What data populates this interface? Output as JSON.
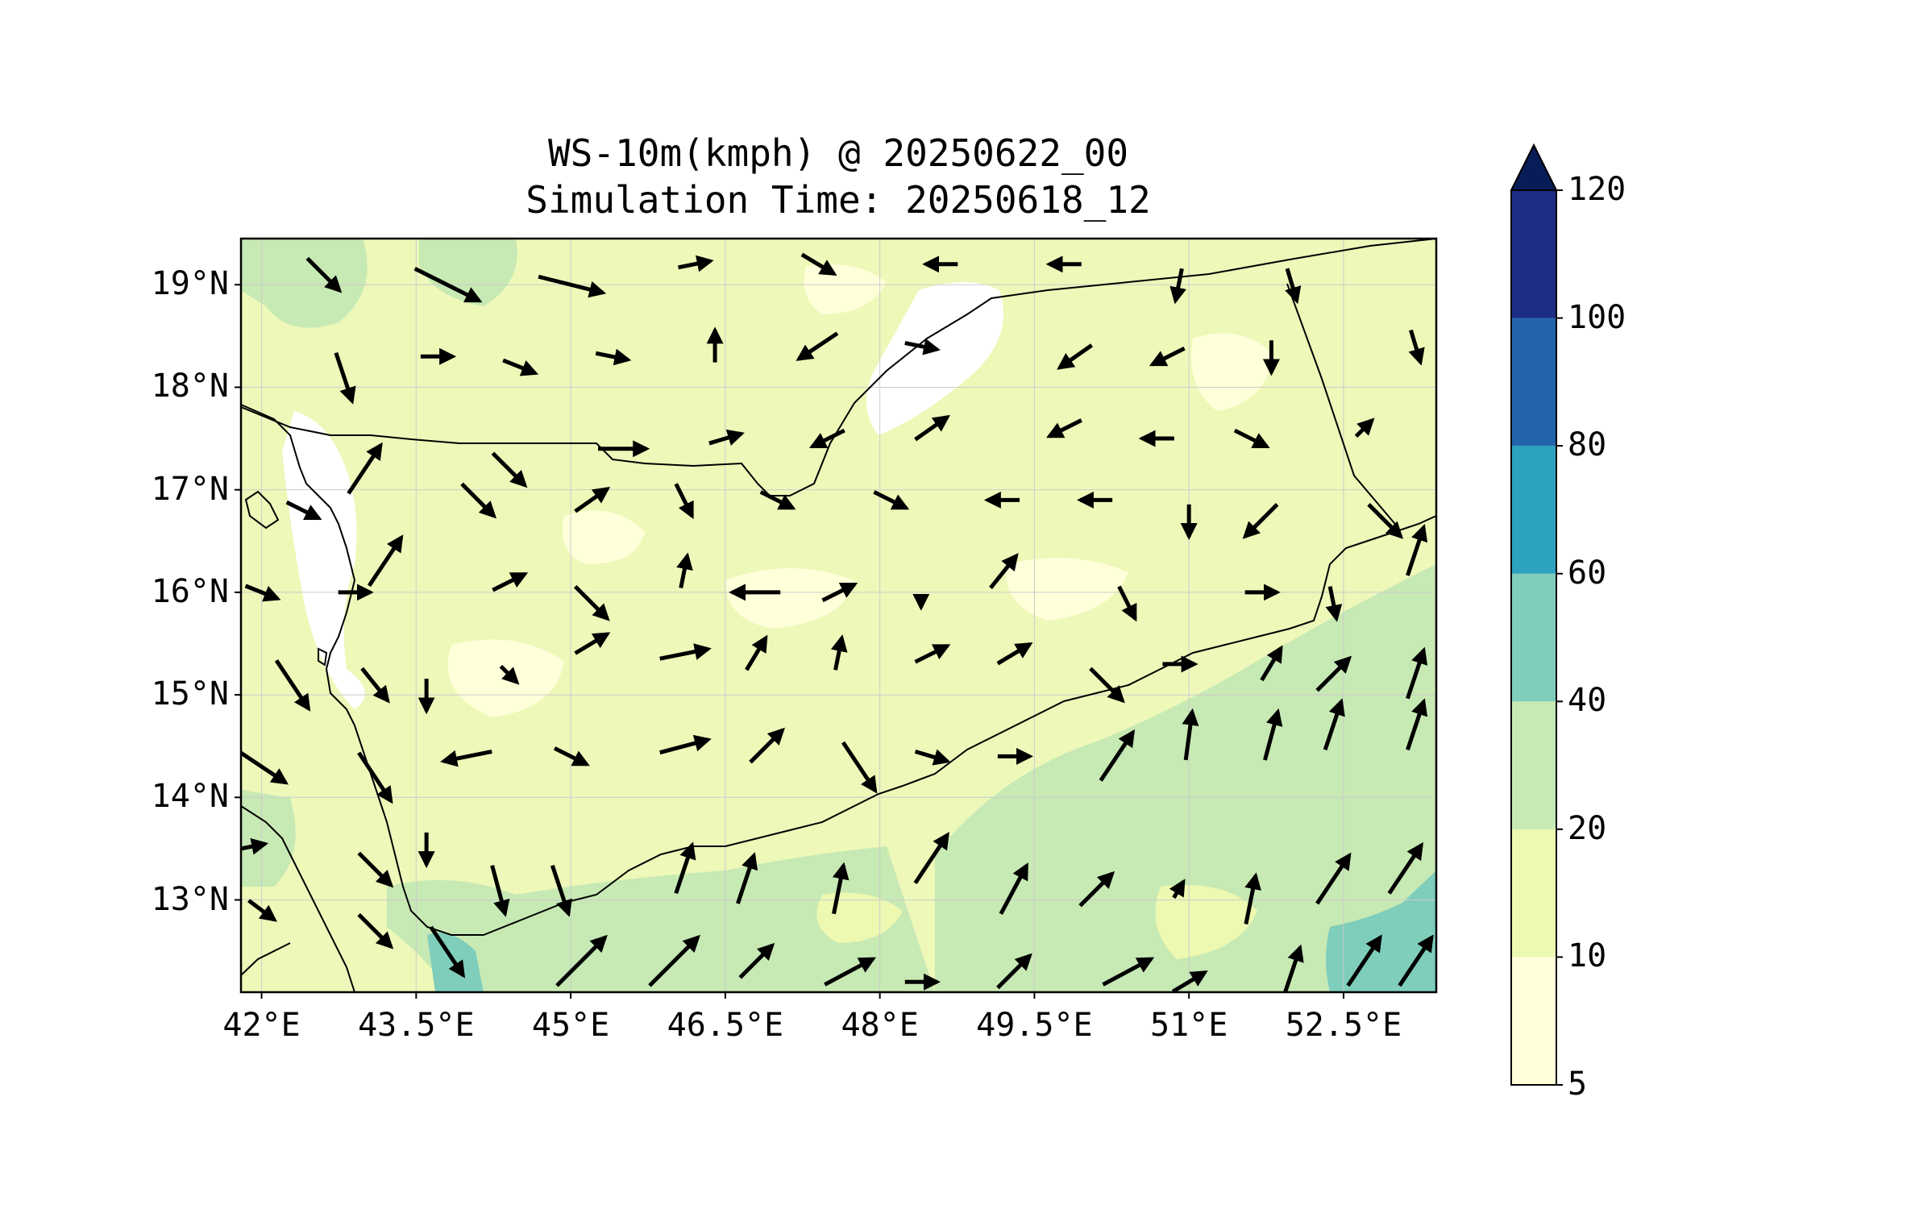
{
  "title": {
    "line1": "WS-10m(kmph) @ 20250622_00",
    "line2": "Simulation Time: 20250618_12"
  },
  "map": {
    "lon_range": [
      41.8,
      53.4
    ],
    "lat_range": [
      12.1,
      19.45
    ],
    "lon_ticks": [
      {
        "value": 42.0,
        "label": "42°E"
      },
      {
        "value": 43.5,
        "label": "43.5°E"
      },
      {
        "value": 45.0,
        "label": "45°E"
      },
      {
        "value": 46.5,
        "label": "46.5°E"
      },
      {
        "value": 48.0,
        "label": "48°E"
      },
      {
        "value": 49.5,
        "label": "49.5°E"
      },
      {
        "value": 51.0,
        "label": "51°E"
      },
      {
        "value": 52.5,
        "label": "52.5°E"
      }
    ],
    "lat_ticks": [
      {
        "value": 19,
        "label": "19°N"
      },
      {
        "value": 18,
        "label": "18°N"
      },
      {
        "value": 17,
        "label": "17°N"
      },
      {
        "value": 16,
        "label": "16°N"
      },
      {
        "value": 15,
        "label": "15°N"
      },
      {
        "value": 14,
        "label": "14°N"
      },
      {
        "value": 13,
        "label": "13°N"
      }
    ],
    "gridlines": true,
    "colors": {
      "land_background": "#edf8b9",
      "coastline": "#000000",
      "borders": "#000000"
    }
  },
  "colorbar": {
    "levels": [
      5,
      10,
      20,
      40,
      60,
      80,
      100,
      120
    ],
    "labels": [
      "5",
      "10",
      "20",
      "40",
      "60",
      "80",
      "100",
      "120"
    ],
    "colors": [
      "#ffffd9",
      "#edf8b1",
      "#c7e9b4",
      "#7fcdbb",
      "#2ca2c0",
      "#2264ab",
      "#1d2c84"
    ],
    "extend_color": "#081d58",
    "extend": "max"
  },
  "wind_arrows": [
    {
      "lon": 42.6,
      "lat": 19.1,
      "dx": 1,
      "dy": -1
    },
    {
      "lon": 43.8,
      "lat": 19.0,
      "dx": 2,
      "dy": -1
    },
    {
      "lon": 45.0,
      "lat": 19.0,
      "dx": 2,
      "dy": -0.5
    },
    {
      "lon": 46.2,
      "lat": 19.2,
      "dx": 1,
      "dy": 0.2
    },
    {
      "lon": 47.4,
      "lat": 19.2,
      "dx": 1,
      "dy": -0.6
    },
    {
      "lon": 48.6,
      "lat": 19.2,
      "dx": -1,
      "dy": 0
    },
    {
      "lon": 49.8,
      "lat": 19.2,
      "dx": -1,
      "dy": 0
    },
    {
      "lon": 50.9,
      "lat": 19.0,
      "dx": -0.2,
      "dy": -1
    },
    {
      "lon": 52.0,
      "lat": 19.0,
      "dx": 0.3,
      "dy": -1
    },
    {
      "lon": 53.2,
      "lat": 18.4,
      "dx": 0.3,
      "dy": -1
    },
    {
      "lon": 42.8,
      "lat": 18.1,
      "dx": 0.5,
      "dy": -1.5
    },
    {
      "lon": 43.7,
      "lat": 18.3,
      "dx": 1,
      "dy": 0
    },
    {
      "lon": 44.5,
      "lat": 18.2,
      "dx": 1,
      "dy": -0.4
    },
    {
      "lon": 45.4,
      "lat": 18.3,
      "dx": 1,
      "dy": -0.2
    },
    {
      "lon": 46.4,
      "lat": 18.4,
      "dx": 0,
      "dy": 1
    },
    {
      "lon": 47.4,
      "lat": 18.4,
      "dx": -1.2,
      "dy": -0.8
    },
    {
      "lon": 48.4,
      "lat": 18.4,
      "dx": 1,
      "dy": -0.2
    },
    {
      "lon": 49.9,
      "lat": 18.3,
      "dx": -1,
      "dy": -0.7
    },
    {
      "lon": 50.8,
      "lat": 18.3,
      "dx": -1,
      "dy": -0.5
    },
    {
      "lon": 51.8,
      "lat": 18.3,
      "dx": 0,
      "dy": -1
    },
    {
      "lon": 43.0,
      "lat": 17.2,
      "dx": 1,
      "dy": 1.5
    },
    {
      "lon": 44.4,
      "lat": 17.2,
      "dx": 1,
      "dy": -1
    },
    {
      "lon": 45.5,
      "lat": 17.4,
      "dx": 1.5,
      "dy": 0
    },
    {
      "lon": 46.5,
      "lat": 17.5,
      "dx": 1,
      "dy": 0.3
    },
    {
      "lon": 47.5,
      "lat": 17.5,
      "dx": -1,
      "dy": -0.5
    },
    {
      "lon": 48.5,
      "lat": 17.6,
      "dx": 1,
      "dy": 0.7
    },
    {
      "lon": 49.8,
      "lat": 17.6,
      "dx": -1,
      "dy": -0.5
    },
    {
      "lon": 50.7,
      "lat": 17.5,
      "dx": -1,
      "dy": 0
    },
    {
      "lon": 51.6,
      "lat": 17.5,
      "dx": 1,
      "dy": -0.5
    },
    {
      "lon": 52.7,
      "lat": 17.6,
      "dx": 0.5,
      "dy": 0.5
    },
    {
      "lon": 42.4,
      "lat": 16.8,
      "dx": 1,
      "dy": -0.5
    },
    {
      "lon": 43.2,
      "lat": 16.3,
      "dx": 1,
      "dy": 1.5
    },
    {
      "lon": 44.1,
      "lat": 16.9,
      "dx": 1,
      "dy": -1
    },
    {
      "lon": 45.2,
      "lat": 16.9,
      "dx": 1,
      "dy": 0.7
    },
    {
      "lon": 46.1,
      "lat": 16.9,
      "dx": 0.5,
      "dy": -1
    },
    {
      "lon": 47.0,
      "lat": 16.9,
      "dx": 1,
      "dy": -0.5
    },
    {
      "lon": 48.1,
      "lat": 16.9,
      "dx": 1,
      "dy": -0.5
    },
    {
      "lon": 49.2,
      "lat": 16.9,
      "dx": -1,
      "dy": 0
    },
    {
      "lon": 50.1,
      "lat": 16.9,
      "dx": -1,
      "dy": 0
    },
    {
      "lon": 51.0,
      "lat": 16.7,
      "dx": 0,
      "dy": -1
    },
    {
      "lon": 51.7,
      "lat": 16.7,
      "dx": -1,
      "dy": -1
    },
    {
      "lon": 52.9,
      "lat": 16.7,
      "dx": 1,
      "dy": -1
    },
    {
      "lon": 42.0,
      "lat": 16.0,
      "dx": 1,
      "dy": -0.4
    },
    {
      "lon": 42.9,
      "lat": 16.0,
      "dx": 1,
      "dy": 0
    },
    {
      "lon": 44.4,
      "lat": 16.1,
      "dx": 1,
      "dy": 0.5
    },
    {
      "lon": 45.2,
      "lat": 15.9,
      "dx": 1,
      "dy": -1
    },
    {
      "lon": 46.1,
      "lat": 16.2,
      "dx": 0.2,
      "dy": 1
    },
    {
      "lon": 46.8,
      "lat": 16.0,
      "dx": -1.5,
      "dy": 0
    },
    {
      "lon": 47.6,
      "lat": 16.0,
      "dx": 1,
      "dy": 0.5
    },
    {
      "lon": 48.4,
      "lat": 15.9,
      "dx": 0,
      "dy": -0.3
    },
    {
      "lon": 49.2,
      "lat": 16.2,
      "dx": 0.8,
      "dy": 1
    },
    {
      "lon": 50.4,
      "lat": 15.9,
      "dx": 0.5,
      "dy": -1
    },
    {
      "lon": 51.7,
      "lat": 16.0,
      "dx": 1,
      "dy": 0
    },
    {
      "lon": 52.4,
      "lat": 15.9,
      "dx": 0.2,
      "dy": -1
    },
    {
      "lon": 53.2,
      "lat": 16.4,
      "dx": 0.5,
      "dy": 1.5
    },
    {
      "lon": 42.3,
      "lat": 15.1,
      "dx": 1,
      "dy": -1.5
    },
    {
      "lon": 43.1,
      "lat": 15.1,
      "dx": 0.8,
      "dy": -1
    },
    {
      "lon": 43.6,
      "lat": 15.0,
      "dx": 0,
      "dy": -1
    },
    {
      "lon": 44.4,
      "lat": 15.2,
      "dx": 0.5,
      "dy": -0.5
    },
    {
      "lon": 45.2,
      "lat": 15.5,
      "dx": 1,
      "dy": 0.6
    },
    {
      "lon": 46.1,
      "lat": 15.4,
      "dx": 1.5,
      "dy": 0.3
    },
    {
      "lon": 46.8,
      "lat": 15.4,
      "dx": 0.6,
      "dy": 1
    },
    {
      "lon": 47.6,
      "lat": 15.4,
      "dx": 0.2,
      "dy": 1
    },
    {
      "lon": 48.5,
      "lat": 15.4,
      "dx": 1,
      "dy": 0.5
    },
    {
      "lon": 49.3,
      "lat": 15.4,
      "dx": 1,
      "dy": 0.6
    },
    {
      "lon": 50.2,
      "lat": 15.1,
      "dx": 1,
      "dy": -1
    },
    {
      "lon": 50.9,
      "lat": 15.3,
      "dx": 1,
      "dy": 0
    },
    {
      "lon": 51.8,
      "lat": 15.3,
      "dx": 0.6,
      "dy": 1
    },
    {
      "lon": 52.4,
      "lat": 15.2,
      "dx": 1,
      "dy": 1
    },
    {
      "lon": 53.2,
      "lat": 15.2,
      "dx": 0.5,
      "dy": 1.5
    },
    {
      "lon": 42.0,
      "lat": 14.3,
      "dx": 1.5,
      "dy": -1
    },
    {
      "lon": 43.1,
      "lat": 14.2,
      "dx": 1,
      "dy": -1.5
    },
    {
      "lon": 44.0,
      "lat": 14.4,
      "dx": -1.5,
      "dy": -0.3
    },
    {
      "lon": 45.0,
      "lat": 14.4,
      "dx": 1,
      "dy": -0.5
    },
    {
      "lon": 46.1,
      "lat": 14.5,
      "dx": 1.5,
      "dy": 0.4
    },
    {
      "lon": 46.9,
      "lat": 14.5,
      "dx": 1,
      "dy": 1
    },
    {
      "lon": 47.8,
      "lat": 14.3,
      "dx": 1,
      "dy": -1.5
    },
    {
      "lon": 48.5,
      "lat": 14.4,
      "dx": 1,
      "dy": -0.3
    },
    {
      "lon": 49.3,
      "lat": 14.4,
      "dx": 1,
      "dy": 0
    },
    {
      "lon": 50.3,
      "lat": 14.4,
      "dx": 1,
      "dy": 1.5
    },
    {
      "lon": 51.0,
      "lat": 14.6,
      "dx": 0.2,
      "dy": 1.5
    },
    {
      "lon": 51.8,
      "lat": 14.6,
      "dx": 0.4,
      "dy": 1.5
    },
    {
      "lon": 52.4,
      "lat": 14.7,
      "dx": 0.5,
      "dy": 1.5
    },
    {
      "lon": 53.2,
      "lat": 14.7,
      "dx": 0.5,
      "dy": 1.5
    },
    {
      "lon": 41.8,
      "lat": 13.5,
      "dx": 1.5,
      "dy": 0.3
    },
    {
      "lon": 43.1,
      "lat": 13.3,
      "dx": 1,
      "dy": -1
    },
    {
      "lon": 43.6,
      "lat": 13.5,
      "dx": 0,
      "dy": -1
    },
    {
      "lon": 44.3,
      "lat": 13.1,
      "dx": 0.4,
      "dy": -1.5
    },
    {
      "lon": 44.9,
      "lat": 13.1,
      "dx": 0.5,
      "dy": -1.5
    },
    {
      "lon": 46.1,
      "lat": 13.3,
      "dx": 0.5,
      "dy": 1.5
    },
    {
      "lon": 46.7,
      "lat": 13.2,
      "dx": 0.5,
      "dy": 1.5
    },
    {
      "lon": 47.6,
      "lat": 13.1,
      "dx": 0.3,
      "dy": 1.5
    },
    {
      "lon": 48.5,
      "lat": 13.4,
      "dx": 1,
      "dy": 1.5
    },
    {
      "lon": 49.3,
      "lat": 13.1,
      "dx": 0.8,
      "dy": 1.5
    },
    {
      "lon": 50.1,
      "lat": 13.1,
      "dx": 1,
      "dy": 1
    },
    {
      "lon": 50.9,
      "lat": 13.1,
      "dx": 0.3,
      "dy": 0.5
    },
    {
      "lon": 51.6,
      "lat": 13.0,
      "dx": 0.3,
      "dy": 1.5
    },
    {
      "lon": 52.4,
      "lat": 13.2,
      "dx": 1,
      "dy": 1.5
    },
    {
      "lon": 53.1,
      "lat": 13.3,
      "dx": 1,
      "dy": 1.5
    },
    {
      "lon": 42.0,
      "lat": 12.9,
      "dx": 0.8,
      "dy": -0.6
    },
    {
      "lon": 43.1,
      "lat": 12.7,
      "dx": 1,
      "dy": -1
    },
    {
      "lon": 43.8,
      "lat": 12.5,
      "dx": 1,
      "dy": -1.5
    },
    {
      "lon": 45.1,
      "lat": 12.4,
      "dx": 1.5,
      "dy": 1.5
    },
    {
      "lon": 46.0,
      "lat": 12.4,
      "dx": 1.5,
      "dy": 1.5
    },
    {
      "lon": 46.8,
      "lat": 12.4,
      "dx": 1,
      "dy": 1
    },
    {
      "lon": 47.7,
      "lat": 12.3,
      "dx": 1.5,
      "dy": 0.8
    },
    {
      "lon": 48.4,
      "lat": 12.2,
      "dx": 1,
      "dy": 0
    },
    {
      "lon": 49.3,
      "lat": 12.3,
      "dx": 1,
      "dy": 1
    },
    {
      "lon": 50.4,
      "lat": 12.3,
      "dx": 1.5,
      "dy": 0.8
    },
    {
      "lon": 51.0,
      "lat": 12.2,
      "dx": 1,
      "dy": 0.6
    },
    {
      "lon": 52.0,
      "lat": 12.3,
      "dx": 0.5,
      "dy": 1.5
    },
    {
      "lon": 52.7,
      "lat": 12.4,
      "dx": 1,
      "dy": 1.5
    },
    {
      "lon": 53.2,
      "lat": 12.4,
      "dx": 1,
      "dy": 1.5
    }
  ]
}
